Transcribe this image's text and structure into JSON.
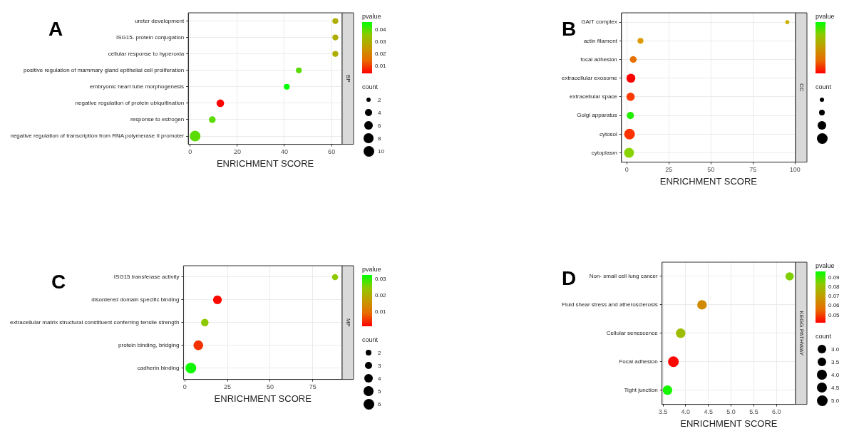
{
  "chart_data": [
    {
      "type": "bubble",
      "orientation": "horizontal",
      "title": "A",
      "xlabel": "ENRICHMENT SCORE",
      "annotations": [
        "BP"
      ],
      "clabel": "pvalue",
      "legend_title": "count",
      "grid": true,
      "categories": [
        "ureter development",
        "ISG15- protein conjugation",
        "cellular response to hyperoxia",
        "positive regulation of mammary gland epithelial cell proliferation",
        "embryonic heart tube morphogenesis",
        "negative regulation of protein ubiquitination",
        "response to estrogen",
        "negative regulation of transcription from RNA polymerase II promoter"
      ],
      "values": [
        61.6,
        61.6,
        61.6,
        46.1,
        41,
        12.8,
        9.4,
        2.1
      ],
      "sizes": [
        3,
        3,
        3,
        3,
        3,
        5,
        4,
        10
      ],
      "cvalues": [
        0.03,
        0.03,
        0.03,
        0.04,
        0.047,
        0.004,
        0.04,
        0.04
      ],
      "clim": [
        0.0038,
        0.0468
      ],
      "cticks": [
        0.01,
        0.02,
        0.03,
        0.04
      ],
      "size_legend": [
        2,
        4,
        6,
        8,
        10
      ],
      "xlim": [
        -0.8,
        64.5
      ],
      "xticks": [
        0,
        20,
        40,
        60
      ]
    },
    {
      "type": "bubble",
      "orientation": "horizontal",
      "title": "B",
      "xlabel": "ENRICHMENT SCORE",
      "annotations": [
        "CC"
      ],
      "clabel": "pvalue",
      "legend_title": "count",
      "grid": true,
      "categories": [
        "GAIT complex",
        "actin filament",
        "focal adhesion",
        "extracellular exosome",
        "extracellular space",
        "Golgi apparatus",
        "cytosol",
        "cytoplasm"
      ],
      "values": [
        95.4,
        8.1,
        3.8,
        2.4,
        2.2,
        2.1,
        1.6,
        1.3
      ],
      "sizes": [
        0.15,
        0.3,
        0.4,
        0.7,
        0.6,
        0.45,
        1,
        0.85
      ],
      "colors": [
        "#c8b400",
        "#dc9a00",
        "#e87000",
        "#ff0000",
        "#ff3a00",
        "#22ee00",
        "#ff3300",
        "#88d400"
      ],
      "xlim": [
        -3.2,
        100.3
      ],
      "xticks": [
        0,
        25,
        50,
        75,
        100
      ]
    },
    {
      "type": "bubble",
      "orientation": "horizontal",
      "title": "C",
      "xlabel": "ENRICHMENT SCORE",
      "annotations": [
        "MF"
      ],
      "clabel": "pvalue",
      "legend_title": "count",
      "grid": true,
      "categories": [
        "ISG15 transferase activity",
        "disordered domain specific binding",
        "extracellular matrix structural constituent conferring tensile strength",
        "protein binding, bridging",
        "cadherin binding"
      ],
      "values": [
        88.1,
        19.1,
        11.7,
        7.9,
        3.5
      ],
      "sizes": [
        2,
        4,
        3,
        5,
        6
      ],
      "cvalues": [
        0.025,
        0.002,
        0.025,
        0.005,
        0.032
      ],
      "clim": [
        0.0014,
        0.0327
      ],
      "cticks": [
        0.01,
        0.02,
        0.03
      ],
      "size_legend": [
        2,
        3,
        4,
        5,
        6
      ],
      "xlim": [
        -0.8,
        92.3
      ],
      "xticks": [
        0,
        25,
        50,
        75
      ]
    },
    {
      "type": "bubble",
      "orientation": "horizontal",
      "title": "D",
      "xlabel": "ENRICHMENT SCORE",
      "annotations": [
        "KEGG PATHWAY"
      ],
      "clabel": "pvalue",
      "legend_title": "count",
      "grid": true,
      "categories": [
        "Non- small cell lung cancer",
        "Fluid shear stress and atherosclerosis",
        "Cellular senescence",
        "Focal adhesion",
        "Tight junction"
      ],
      "values": [
        6.29,
        4.36,
        3.89,
        3.73,
        3.6
      ],
      "sizes": [
        3,
        4,
        4,
        5,
        4
      ],
      "cvalues": [
        0.085,
        0.065,
        0.08,
        0.043,
        0.095
      ],
      "clim": [
        0.042,
        0.097
      ],
      "cticks": [
        0.05,
        0.06,
        0.07,
        0.08,
        0.09
      ],
      "size_legend": [
        {
          "value": 3,
          "label": "3.0"
        },
        {
          "value": 3.5,
          "label": "3.5"
        },
        {
          "value": 4,
          "label": "4.0"
        },
        {
          "value": 4.5,
          "label": "4.5"
        },
        {
          "value": 5,
          "label": "5.0"
        }
      ],
      "xlim": [
        3.48,
        6.42
      ],
      "xticks": [
        3.5,
        {
          "value": 4,
          "label": "4.0"
        },
        4.5,
        {
          "value": 5,
          "label": "5.0"
        },
        5.5,
        {
          "value": 6,
          "label": "6.0"
        }
      ]
    }
  ]
}
